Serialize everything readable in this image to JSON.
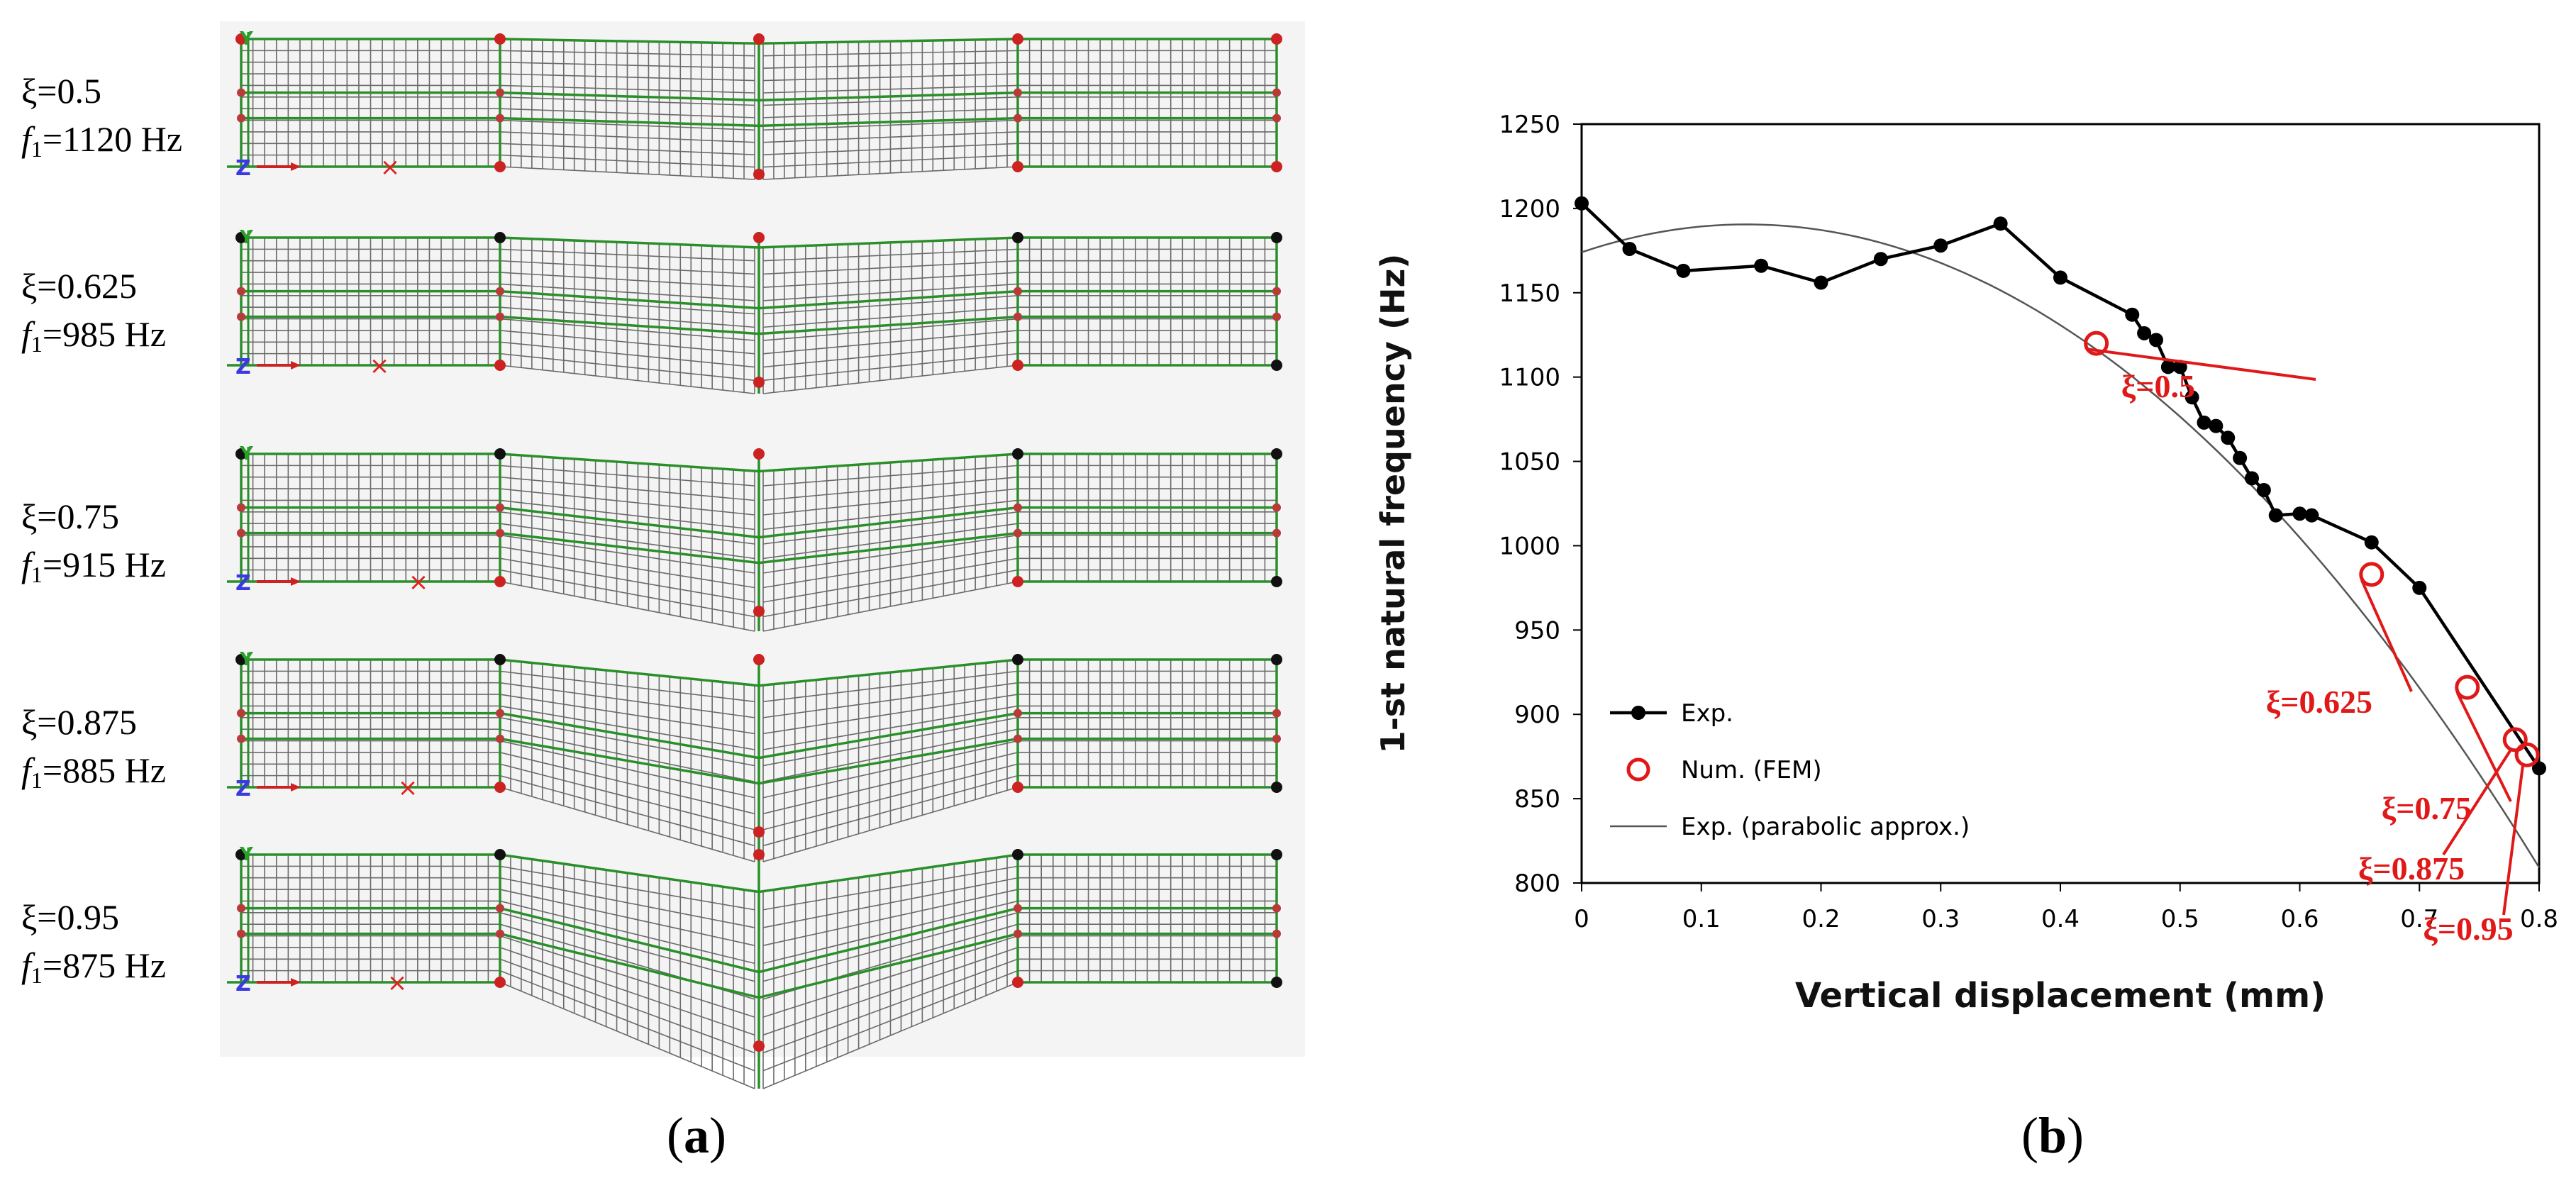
{
  "figure": {
    "panel_a_label": "a",
    "panel_b_label": "b"
  },
  "modes": [
    {
      "xi": "ξ=0.5",
      "f_sym": "f",
      "f_sub": "1",
      "f_val": "=1120 Hz"
    },
    {
      "xi": "ξ=0.625",
      "f_sym": "f",
      "f_sub": "1",
      "f_val": "=985 Hz"
    },
    {
      "xi": "ξ=0.75",
      "f_sym": "f",
      "f_sub": "1",
      "f_val": "=915 Hz"
    },
    {
      "xi": "ξ=0.875",
      "f_sym": "f",
      "f_sub": "1",
      "f_val": "=885 Hz"
    },
    {
      "xi": "ξ=0.95",
      "f_sym": "f",
      "f_sub": "1",
      "f_val": "=875 Hz"
    }
  ],
  "chart_data": {
    "type": "line",
    "title": "",
    "xlabel": "Vertical displacement (mm)",
    "ylabel": "1-st natural frequency (Hz)",
    "xlim": [
      0,
      0.8
    ],
    "ylim": [
      800,
      1250
    ],
    "xticks": [
      0,
      0.1,
      0.2,
      0.3,
      0.4,
      0.5,
      0.6,
      0.7,
      0.8
    ],
    "xtick_labels": [
      "0",
      "0.1",
      "0.2",
      "0.3",
      "0.4",
      "0.5",
      "0.6",
      "0.7",
      "0.8"
    ],
    "yticks": [
      800,
      850,
      900,
      950,
      1000,
      1050,
      1100,
      1150,
      1200,
      1250
    ],
    "ytick_labels": [
      "800",
      "850",
      "900",
      "950",
      "1000",
      "1050",
      "1100",
      "1150",
      "1200",
      "1250"
    ],
    "grid": false,
    "legend_position": "bottom-left",
    "series": [
      {
        "name": "Exp.",
        "style": "line-marker",
        "color": "#000000",
        "points": [
          [
            0,
            1203
          ],
          [
            0.04,
            1176
          ],
          [
            0.085,
            1163
          ],
          [
            0.15,
            1166
          ],
          [
            0.2,
            1156
          ],
          [
            0.25,
            1170
          ],
          [
            0.3,
            1178
          ],
          [
            0.35,
            1191
          ],
          [
            0.4,
            1159
          ],
          [
            0.46,
            1137
          ],
          [
            0.47,
            1126
          ],
          [
            0.48,
            1122
          ],
          [
            0.49,
            1106
          ],
          [
            0.5,
            1106
          ],
          [
            0.51,
            1088
          ],
          [
            0.52,
            1073
          ],
          [
            0.53,
            1071
          ],
          [
            0.54,
            1064
          ],
          [
            0.55,
            1052
          ],
          [
            0.56,
            1040
          ],
          [
            0.57,
            1033
          ],
          [
            0.58,
            1018
          ],
          [
            0.6,
            1019
          ],
          [
            0.61,
            1018
          ],
          [
            0.66,
            1002
          ],
          [
            0.7,
            975
          ],
          [
            0.8,
            868
          ]
        ]
      },
      {
        "name": "Num. (FEM)",
        "style": "marker-open-circle",
        "color": "#e01818",
        "points": [
          [
            0.43,
            1120
          ],
          [
            0.66,
            983
          ],
          [
            0.74,
            916
          ],
          [
            0.78,
            885
          ],
          [
            0.79,
            876
          ]
        ]
      },
      {
        "name": "Exp. (parabolic approx.)",
        "style": "thin-line",
        "color": "#555555",
        "coefficients": {
          "a": -870,
          "b": 240,
          "c": 1174
        },
        "x_range": [
          0,
          0.8
        ]
      }
    ],
    "annotations": [
      {
        "text": "ξ=0.5",
        "target": [
          0.43,
          1120
        ],
        "color": "#e01818"
      },
      {
        "text": "ξ=0.625",
        "target": [
          0.66,
          983
        ],
        "color": "#e01818"
      },
      {
        "text": "ξ=0.75",
        "target": [
          0.74,
          916
        ],
        "color": "#e01818"
      },
      {
        "text": "ξ=0.875",
        "target": [
          0.78,
          885
        ],
        "color": "#e01818"
      },
      {
        "text": "ξ=0.95",
        "target": [
          0.79,
          876
        ],
        "color": "#e01818"
      }
    ]
  }
}
